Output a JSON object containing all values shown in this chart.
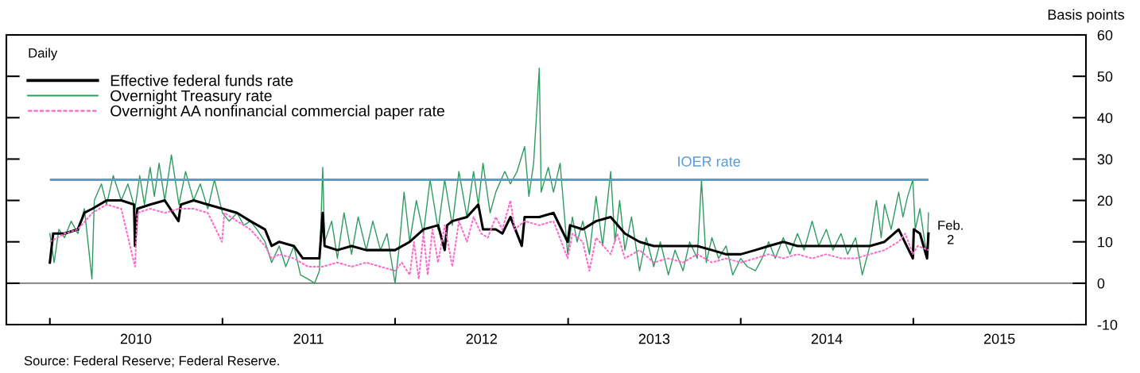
{
  "chart_data": {
    "type": "line",
    "ylabel": "Basis points",
    "annotations": [
      "Daily",
      {
        "text": "Feb.\n2",
        "x": "2015-02-02",
        "y": 12
      },
      "Source: Federal Reserve; Federal Reserve."
    ],
    "xlim": [
      "2009-10-01",
      "2016-01-01"
    ],
    "xticks": [
      {
        "value": "2010-01-01",
        "label": null
      },
      {
        "value": "2010-07-02",
        "label": "2010"
      },
      {
        "value": "2011-01-01",
        "label": null
      },
      {
        "value": "2011-07-02",
        "label": "2011"
      },
      {
        "value": "2012-01-01",
        "label": null
      },
      {
        "value": "2012-07-02",
        "label": "2012"
      },
      {
        "value": "2013-01-01",
        "label": null
      },
      {
        "value": "2013-07-02",
        "label": "2013"
      },
      {
        "value": "2014-01-01",
        "label": null
      },
      {
        "value": "2014-07-02",
        "label": "2014"
      },
      {
        "value": "2015-01-01",
        "label": null
      },
      {
        "value": "2015-07-02",
        "label": "2015"
      }
    ],
    "ylim": [
      -10,
      60
    ],
    "yticks": [
      -10,
      0,
      10,
      20,
      30,
      40,
      50,
      60
    ],
    "grid": false,
    "legend": "top left",
    "marker": "none",
    "ref_lines": [
      {
        "axis": "y",
        "value": 25,
        "label": "IOER rate",
        "color": "#5b9bd5",
        "line_style": "solid"
      },
      {
        "axis": "y",
        "value": 0,
        "label": null,
        "color": "#444444",
        "line_style": "solid"
      }
    ],
    "series": [
      {
        "name": "Effective federal funds rate",
        "color": "#000000",
        "line_style": "solid",
        "x": [
          "2010-01-01",
          "2010-01-08",
          "2010-02-01",
          "2010-03-01",
          "2010-03-15",
          "2010-04-01",
          "2010-05-01",
          "2010-06-01",
          "2010-06-28",
          "2010-06-30",
          "2010-07-05",
          "2010-08-01",
          "2010-09-01",
          "2010-09-30",
          "2010-10-05",
          "2010-11-01",
          "2010-12-01",
          "2011-01-01",
          "2011-02-01",
          "2011-03-01",
          "2011-04-01",
          "2011-04-15",
          "2011-05-01",
          "2011-06-01",
          "2011-06-20",
          "2011-07-25",
          "2011-08-01",
          "2011-08-05",
          "2011-09-01",
          "2011-10-01",
          "2011-11-01",
          "2011-12-01",
          "2012-01-01",
          "2012-02-01",
          "2012-03-01",
          "2012-04-01",
          "2012-04-15",
          "2012-04-20",
          "2012-05-01",
          "2012-06-01",
          "2012-06-25",
          "2012-07-05",
          "2012-08-01",
          "2012-08-15",
          "2012-09-01",
          "2012-09-25",
          "2012-10-01",
          "2012-11-01",
          "2012-12-01",
          "2012-12-31",
          "2013-01-05",
          "2013-02-01",
          "2013-03-01",
          "2013-04-01",
          "2013-05-01",
          "2013-06-01",
          "2013-07-01",
          "2013-08-01",
          "2013-09-01",
          "2013-10-01",
          "2013-11-01",
          "2013-12-01",
          "2014-01-01",
          "2014-02-01",
          "2014-03-01",
          "2014-04-01",
          "2014-05-01",
          "2014-06-01",
          "2014-07-01",
          "2014-08-01",
          "2014-09-01",
          "2014-10-01",
          "2014-11-01",
          "2014-12-01",
          "2014-12-31",
          "2015-01-02",
          "2015-01-15",
          "2015-01-30",
          "2015-02-02"
        ],
        "values": [
          5,
          12,
          12,
          13,
          17,
          18,
          20,
          20,
          19,
          9,
          18,
          19,
          20,
          15,
          19,
          20,
          19,
          18,
          17,
          15,
          13,
          9,
          10,
          9,
          6,
          6,
          17,
          9,
          8,
          9,
          8,
          8,
          8,
          10,
          13,
          14,
          8,
          14,
          15,
          16,
          19,
          13,
          13,
          12,
          16,
          9,
          16,
          16,
          17,
          10,
          14,
          13,
          15,
          16,
          12,
          10,
          9,
          9,
          9,
          9,
          8,
          7,
          7,
          8,
          9,
          10,
          9,
          9,
          9,
          9,
          9,
          9,
          10,
          13,
          6,
          13,
          12,
          6,
          12
        ]
      },
      {
        "name": "Overnight Treasury rate",
        "color": "#2e9b5f",
        "line_style": "solid",
        "x": [
          "2010-01-01",
          "2010-01-10",
          "2010-01-20",
          "2010-02-01",
          "2010-02-15",
          "2010-03-01",
          "2010-03-15",
          "2010-03-31",
          "2010-04-05",
          "2010-04-20",
          "2010-05-01",
          "2010-05-15",
          "2010-06-01",
          "2010-06-15",
          "2010-06-30",
          "2010-07-10",
          "2010-07-20",
          "2010-08-01",
          "2010-08-10",
          "2010-08-20",
          "2010-09-01",
          "2010-09-15",
          "2010-10-01",
          "2010-10-15",
          "2010-11-01",
          "2010-11-15",
          "2010-12-01",
          "2010-12-15",
          "2011-01-01",
          "2011-01-15",
          "2011-02-01",
          "2011-02-15",
          "2011-03-01",
          "2011-03-15",
          "2011-04-01",
          "2011-04-15",
          "2011-05-01",
          "2011-05-15",
          "2011-06-01",
          "2011-06-15",
          "2011-07-01",
          "2011-07-15",
          "2011-07-25",
          "2011-08-01",
          "2011-08-05",
          "2011-08-20",
          "2011-09-01",
          "2011-09-15",
          "2011-10-01",
          "2011-10-15",
          "2011-11-01",
          "2011-11-15",
          "2011-12-01",
          "2011-12-15",
          "2012-01-01",
          "2012-01-10",
          "2012-01-20",
          "2012-02-01",
          "2012-02-15",
          "2012-03-01",
          "2012-03-15",
          "2012-04-01",
          "2012-04-15",
          "2012-05-01",
          "2012-05-15",
          "2012-06-01",
          "2012-06-15",
          "2012-06-25",
          "2012-07-05",
          "2012-07-20",
          "2012-08-01",
          "2012-08-20",
          "2012-09-01",
          "2012-09-15",
          "2012-10-01",
          "2012-10-10",
          "2012-10-20",
          "2012-11-01",
          "2012-11-05",
          "2012-11-20",
          "2012-12-01",
          "2012-12-15",
          "2012-12-31",
          "2013-01-10",
          "2013-01-20",
          "2013-02-01",
          "2013-02-15",
          "2013-03-01",
          "2013-03-15",
          "2013-04-01",
          "2013-04-10",
          "2013-04-20",
          "2013-05-01",
          "2013-05-15",
          "2013-06-01",
          "2013-06-15",
          "2013-07-01",
          "2013-07-15",
          "2013-08-01",
          "2013-08-15",
          "2013-09-01",
          "2013-09-15",
          "2013-10-01",
          "2013-10-10",
          "2013-10-20",
          "2013-11-01",
          "2013-11-15",
          "2013-12-01",
          "2013-12-15",
          "2014-01-01",
          "2014-01-15",
          "2014-02-01",
          "2014-02-15",
          "2014-03-01",
          "2014-03-15",
          "2014-04-01",
          "2014-04-15",
          "2014-05-01",
          "2014-05-15",
          "2014-06-01",
          "2014-06-15",
          "2014-07-01",
          "2014-07-15",
          "2014-08-01",
          "2014-08-15",
          "2014-09-01",
          "2014-09-15",
          "2014-10-01",
          "2014-10-15",
          "2014-10-25",
          "2014-11-01",
          "2014-11-15",
          "2014-12-01",
          "2014-12-10",
          "2014-12-20",
          "2014-12-31",
          "2015-01-05",
          "2015-01-15",
          "2015-01-25",
          "2015-01-30",
          "2015-02-02"
        ],
        "values": [
          12,
          5,
          13,
          11,
          15,
          12,
          18,
          1,
          20,
          24,
          19,
          26,
          20,
          24,
          18,
          26,
          19,
          28,
          21,
          29,
          20,
          31,
          19,
          27,
          20,
          24,
          18,
          25,
          17,
          15,
          17,
          14,
          15,
          13,
          10,
          5,
          9,
          4,
          9,
          2,
          1,
          0,
          3,
          28,
          10,
          15,
          6,
          17,
          7,
          16,
          8,
          15,
          8,
          12,
          0,
          9,
          22,
          10,
          20,
          12,
          25,
          13,
          25,
          14,
          27,
          16,
          27,
          19,
          29,
          17,
          22,
          27,
          24,
          27,
          33,
          21,
          29,
          52,
          22,
          28,
          22,
          29,
          7,
          16,
          10,
          15,
          7,
          21,
          9,
          27,
          10,
          20,
          8,
          16,
          3,
          11,
          4,
          10,
          2,
          8,
          3,
          10,
          6,
          25,
          5,
          11,
          6,
          9,
          2,
          6,
          4,
          3,
          6,
          10,
          6,
          11,
          7,
          12,
          8,
          15,
          9,
          13,
          8,
          12,
          7,
          11,
          2,
          9,
          20,
          11,
          19,
          13,
          22,
          16,
          21,
          25,
          13,
          18,
          10,
          7,
          17
        ]
      },
      {
        "name": "Overnight AA nonfinancial commercial paper rate",
        "color": "#ff66cc",
        "line_style": "dashed",
        "x": [
          "2010-01-01",
          "2010-02-01",
          "2010-03-01",
          "2010-04-01",
          "2010-05-01",
          "2010-06-01",
          "2010-06-30",
          "2010-07-05",
          "2010-08-01",
          "2010-09-01",
          "2010-10-01",
          "2010-11-01",
          "2010-12-01",
          "2010-12-31",
          "2011-01-05",
          "2011-02-01",
          "2011-03-01",
          "2011-04-01",
          "2011-04-15",
          "2011-05-01",
          "2011-06-01",
          "2011-07-01",
          "2011-08-01",
          "2011-09-01",
          "2011-10-01",
          "2011-11-01",
          "2011-12-01",
          "2012-01-01",
          "2012-01-15",
          "2012-02-01",
          "2012-02-10",
          "2012-02-20",
          "2012-03-01",
          "2012-03-10",
          "2012-03-20",
          "2012-04-01",
          "2012-04-15",
          "2012-05-01",
          "2012-05-15",
          "2012-06-01",
          "2012-06-15",
          "2012-07-01",
          "2012-07-15",
          "2012-08-01",
          "2012-08-15",
          "2012-09-01",
          "2012-09-10",
          "2012-10-01",
          "2012-11-01",
          "2012-12-01",
          "2012-12-31",
          "2013-01-10",
          "2013-02-01",
          "2013-02-15",
          "2013-03-01",
          "2013-04-01",
          "2013-04-15",
          "2013-05-01",
          "2013-06-01",
          "2013-07-01",
          "2013-08-01",
          "2013-09-01",
          "2013-10-01",
          "2013-11-01",
          "2013-12-01",
          "2014-01-01",
          "2014-02-01",
          "2014-03-01",
          "2014-04-01",
          "2014-05-01",
          "2014-06-01",
          "2014-07-01",
          "2014-08-01",
          "2014-09-01",
          "2014-10-01",
          "2014-11-01",
          "2014-12-01",
          "2014-12-15",
          "2014-12-31",
          "2015-01-10",
          "2015-02-02"
        ],
        "values": [
          10,
          12,
          13,
          17,
          19,
          18,
          4,
          17,
          18,
          17,
          18,
          18,
          17,
          10,
          17,
          15,
          13,
          9,
          6,
          7,
          6,
          4,
          4,
          5,
          4,
          5,
          4,
          3,
          5,
          2,
          10,
          1,
          12,
          2,
          13,
          5,
          14,
          4,
          15,
          10,
          16,
          12,
          11,
          16,
          13,
          20,
          13,
          15,
          14,
          15,
          6,
          12,
          10,
          3,
          11,
          7,
          12,
          6,
          8,
          5,
          6,
          5,
          7,
          5,
          6,
          5,
          6,
          7,
          6,
          7,
          6,
          7,
          6,
          6,
          7,
          8,
          10,
          12,
          7,
          9,
          8
        ]
      }
    ]
  }
}
